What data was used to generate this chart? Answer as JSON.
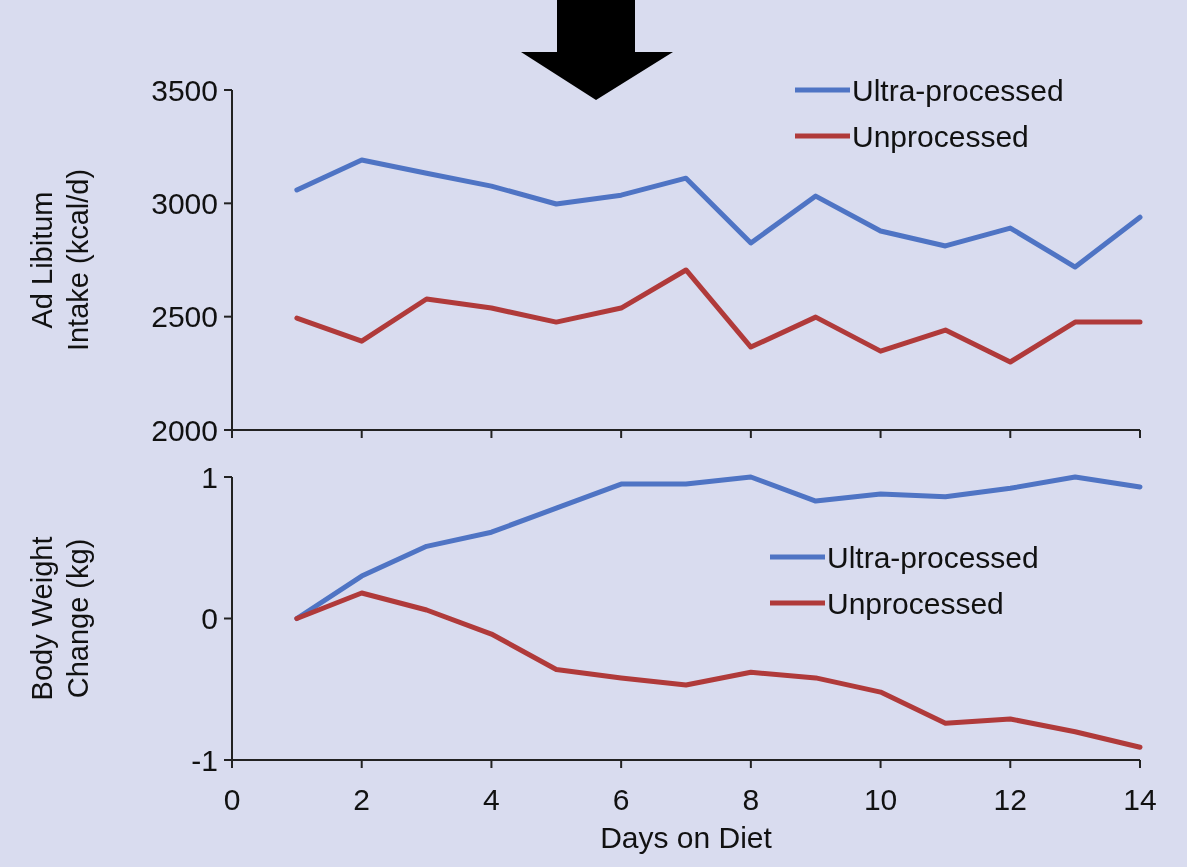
{
  "chart_data": [
    {
      "type": "line",
      "ylabel": "Ad Libitum\nIntake (kcal/d)",
      "x": [
        1,
        2,
        3,
        4,
        5,
        6,
        7,
        8,
        9,
        10,
        11,
        12,
        13,
        14
      ],
      "xlim": [
        0,
        14
      ],
      "xticks": [
        0,
        2,
        4,
        6,
        8,
        10,
        12,
        14
      ],
      "ylim": [
        2000,
        3500
      ],
      "yticks": [
        2000,
        2500,
        3000,
        3500
      ],
      "tick_labels": "y",
      "legend": "top right",
      "grid": false,
      "marker": "none",
      "line_style": "solid",
      "series": [
        {
          "name": "Ultra-processed",
          "color": "#4f74c4",
          "values": [
            3059,
            3191,
            3133,
            3076,
            2997,
            3036,
            3111,
            2825,
            3032,
            2878,
            2812,
            2891,
            2719,
            2939
          ]
        },
        {
          "name": "Unprocessed",
          "color": "#b03a3a",
          "values": [
            2494,
            2392,
            2578,
            2538,
            2476,
            2538,
            2706,
            2366,
            2498,
            2348,
            2441,
            2300,
            2476,
            2476
          ]
        }
      ]
    },
    {
      "type": "line",
      "xlabel": "Days on Diet",
      "ylabel": "Body Weight\nChange (kg)",
      "x": [
        1,
        2,
        3,
        4,
        5,
        6,
        7,
        8,
        9,
        10,
        11,
        12,
        13,
        14
      ],
      "xlim": [
        0,
        14
      ],
      "xticks": [
        0,
        2,
        4,
        6,
        8,
        10,
        12,
        14
      ],
      "ylim": [
        -1,
        1
      ],
      "yticks": [
        -1,
        0,
        1
      ],
      "legend": "right",
      "grid": false,
      "marker": "none",
      "line_style": "solid",
      "series": [
        {
          "name": "Ultra-processed",
          "color": "#4f74c4",
          "values": [
            0,
            0.3,
            0.51,
            0.61,
            0.78,
            0.95,
            0.95,
            1.0,
            0.83,
            0.88,
            0.86,
            0.92,
            1.0,
            0.93
          ]
        },
        {
          "name": "Unprocessed",
          "color": "#b03a3a",
          "values": [
            0,
            0.18,
            0.06,
            -0.11,
            -0.36,
            -0.42,
            -0.47,
            -0.38,
            -0.42,
            -0.52,
            -0.74,
            -0.71,
            -0.8,
            -0.91
          ]
        }
      ]
    }
  ]
}
